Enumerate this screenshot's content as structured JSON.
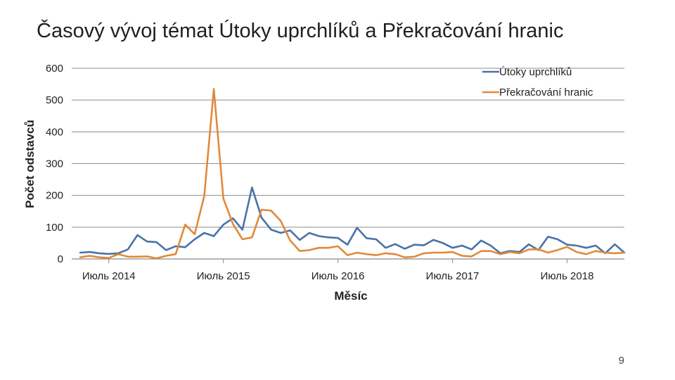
{
  "slide": {
    "title": "Časový vývoj témat Útoky uprchlíků a Překračování hranic",
    "page_number": "9"
  },
  "chart_data": {
    "type": "line",
    "title": "",
    "xlabel": "Měsíc",
    "ylabel": "Počet odstavců",
    "ylim": [
      0,
      600
    ],
    "yticks": [
      0,
      100,
      200,
      300,
      400,
      500,
      600
    ],
    "grid": true,
    "legend_position": "top-right",
    "x_tick_labels": [
      {
        "label": "Июль 2014",
        "index": 3
      },
      {
        "label": "Июль 2015",
        "index": 15
      },
      {
        "label": "Июль 2016",
        "index": 27
      },
      {
        "label": "Июль 2017",
        "index": 39
      },
      {
        "label": "Июль 2018",
        "index": 51
      }
    ],
    "series": [
      {
        "name": "Útoky uprchlíků",
        "color": "#4a72a8",
        "values": [
          20,
          22,
          18,
          16,
          18,
          30,
          75,
          55,
          53,
          28,
          40,
          37,
          62,
          82,
          72,
          108,
          128,
          92,
          225,
          130,
          92,
          82,
          90,
          60,
          82,
          72,
          68,
          66,
          45,
          98,
          65,
          62,
          35,
          47,
          32,
          45,
          43,
          60,
          50,
          35,
          42,
          30,
          58,
          42,
          18,
          25,
          22,
          46,
          28,
          70,
          62,
          45,
          42,
          35,
          42,
          18,
          46,
          20
        ]
      },
      {
        "name": "Překračování hranic",
        "color": "#e08a3a",
        "values": [
          5,
          10,
          5,
          3,
          15,
          7,
          7,
          8,
          2,
          10,
          15,
          108,
          78,
          198,
          535,
          190,
          110,
          62,
          68,
          155,
          152,
          120,
          58,
          25,
          28,
          35,
          35,
          40,
          12,
          20,
          15,
          12,
          18,
          15,
          5,
          7,
          18,
          20,
          20,
          22,
          10,
          8,
          25,
          25,
          15,
          22,
          18,
          30,
          30,
          20,
          28,
          38,
          22,
          15,
          25,
          20,
          18,
          20
        ]
      }
    ]
  }
}
